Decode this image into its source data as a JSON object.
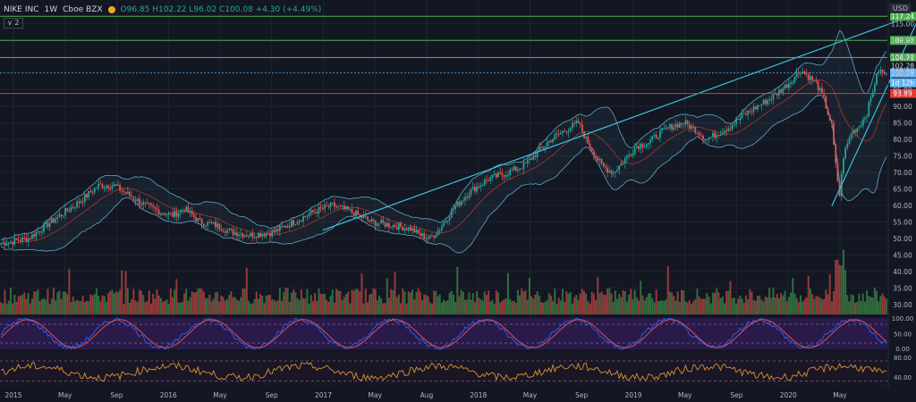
{
  "header": {
    "symbol": "NIKE INC",
    "interval": "1W",
    "exchange": "Cboe BZX",
    "ohlc": "O96.85  H102.22  L96.02  C100.08  +4.30 (+4.49%)"
  },
  "indicator_toggle": "∨ 2",
  "currency": "USD",
  "colors": {
    "bg": "#131722",
    "grid": "#1f2330",
    "up": "#26a69a",
    "down": "#ef5350",
    "vol_up": "#3a7d44",
    "vol_down": "#b0413e",
    "band": "#5fa8c8",
    "trend": "#3bc2e0",
    "hline_green": "#4caf50",
    "hline_red": "#e53935",
    "hline_blue": "#64b5f6",
    "rsi_bg": "#2a1a4a",
    "stoch_k": "#2962ff",
    "stoch_d": "#ef5350",
    "cci": "#f0a030"
  },
  "chart_data": {
    "type": "candlestick",
    "title": "NIKE INC · 1W · Cboe BZX",
    "x_tick_labels": [
      "2015",
      "May",
      "Sep",
      "2016",
      "May",
      "Sep",
      "2017",
      "May",
      "Aug",
      "2018",
      "May",
      "Sep",
      "2019",
      "May",
      "Sep",
      "2020",
      "May"
    ],
    "y_tick_labels": [
      "30.00",
      "35.00",
      "40.00",
      "45.00",
      "50.00",
      "55.00",
      "60.00",
      "65.00",
      "70.00",
      "75.00",
      "80.00",
      "85.00",
      "90.00",
      "95.00",
      "100.00",
      "105.00",
      "110.00",
      "115.00"
    ],
    "ylim": [
      27,
      120
    ],
    "close_path": [
      [
        0,
        48.5
      ],
      [
        14,
        50
      ],
      [
        28,
        56
      ],
      [
        40,
        61
      ],
      [
        50,
        66
      ],
      [
        58,
        66
      ],
      [
        66,
        63
      ],
      [
        74,
        60
      ],
      [
        82,
        58
      ],
      [
        88,
        57
      ],
      [
        94,
        59
      ],
      [
        102,
        55
      ],
      [
        110,
        54
      ],
      [
        118,
        52
      ],
      [
        128,
        51
      ],
      [
        140,
        52
      ],
      [
        150,
        55
      ],
      [
        160,
        58
      ],
      [
        170,
        60
      ],
      [
        180,
        58
      ],
      [
        190,
        55
      ],
      [
        200,
        54
      ],
      [
        210,
        53
      ],
      [
        215,
        51
      ],
      [
        220,
        50
      ],
      [
        225,
        53
      ],
      [
        232,
        59
      ],
      [
        240,
        64
      ],
      [
        250,
        68
      ],
      [
        260,
        70
      ],
      [
        268,
        72
      ],
      [
        275,
        76
      ],
      [
        282,
        80
      ],
      [
        290,
        83
      ],
      [
        296,
        85
      ],
      [
        300,
        80
      ],
      [
        304,
        76
      ],
      [
        308,
        72
      ],
      [
        314,
        70
      ],
      [
        320,
        74
      ],
      [
        326,
        78
      ],
      [
        332,
        79
      ],
      [
        338,
        82
      ],
      [
        344,
        84
      ],
      [
        350,
        85
      ],
      [
        356,
        83
      ],
      [
        362,
        80
      ],
      [
        368,
        82
      ],
      [
        374,
        84
      ],
      [
        380,
        87
      ],
      [
        388,
        90
      ],
      [
        396,
        93
      ],
      [
        404,
        97
      ],
      [
        410,
        101
      ],
      [
        414,
        99
      ],
      [
        418,
        97
      ],
      [
        422,
        92
      ],
      [
        426,
        84
      ],
      [
        428,
        72
      ],
      [
        430,
        63
      ],
      [
        432,
        75
      ],
      [
        436,
        82
      ],
      [
        440,
        84
      ],
      [
        444,
        88
      ],
      [
        448,
        97
      ],
      [
        450,
        101
      ],
      [
        452,
        100.08
      ]
    ],
    "horizontal_levels": [
      {
        "value": 117.24,
        "label": "117.24",
        "color": "green"
      },
      {
        "value": 109.93,
        "label": "109.93",
        "color": "green"
      },
      {
        "value": 104.71,
        "label": "104.71",
        "color": "green"
      },
      {
        "value": 102.28,
        "label": "102.28",
        "color": "gray"
      },
      {
        "value": 100.08,
        "label": "100.08",
        "color": "blue"
      },
      {
        "value": 93.89,
        "label": "93.89",
        "color": "red"
      }
    ],
    "countdown_label": "1d 12h",
    "trendlines": [
      {
        "from": [
          165,
          52.5
        ],
        "to": [
          472,
          118.5
        ]
      },
      {
        "from": [
          426,
          59.8
        ],
        "to": [
          472,
          118.5
        ]
      }
    ],
    "volume_panel": {
      "bars": 455
    },
    "stochastic_panel": {
      "y_tick_labels": [
        "100.00",
        "50.00",
        "0.00"
      ]
    },
    "cci_panel": {
      "y_tick_labels": [
        "80.00",
        "40.00"
      ]
    }
  }
}
